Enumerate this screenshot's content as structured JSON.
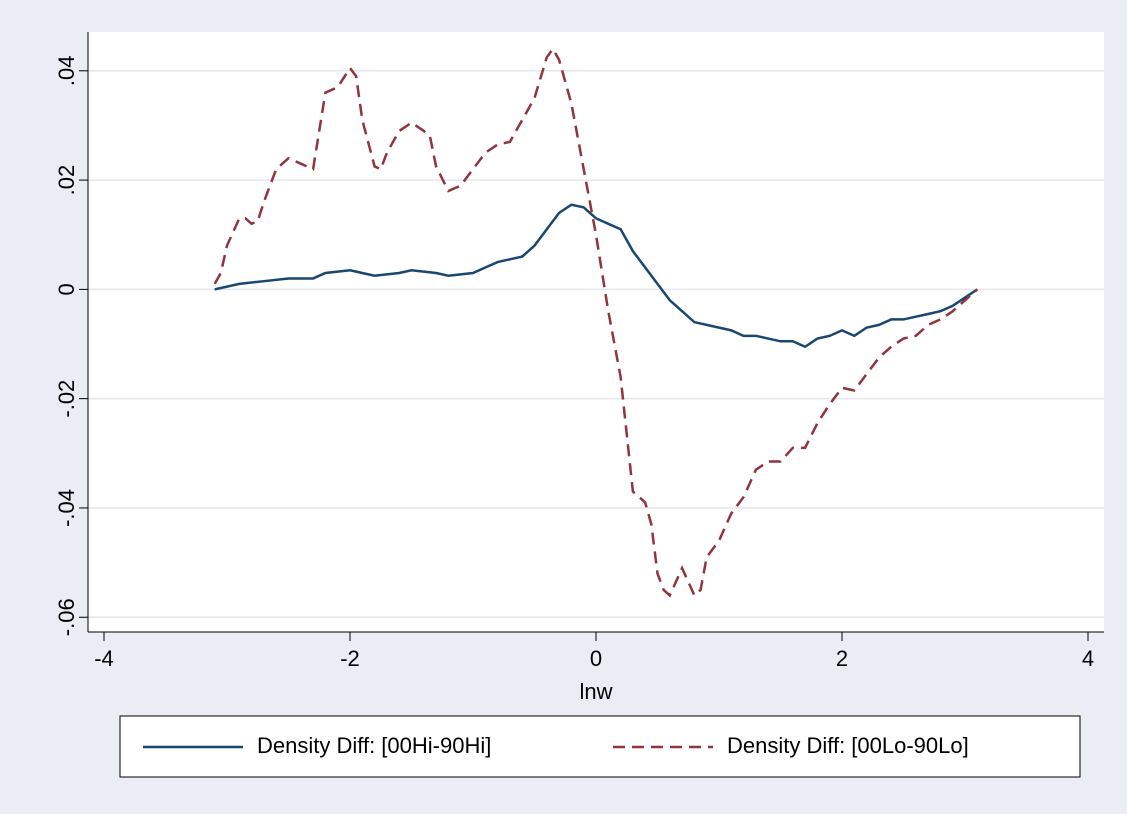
{
  "chart_data": {
    "type": "line",
    "x_label": "lnw",
    "xlim": [
      -4.13,
      4.13
    ],
    "xticks": [
      -4,
      -2,
      0,
      2,
      4
    ],
    "ylim": [
      -0.0627,
      0.0471
    ],
    "yticks": [
      {
        "value": -0.06,
        "label": "-.06"
      },
      {
        "value": -0.04,
        "label": "-.04"
      },
      {
        "value": -0.02,
        "label": "-.02"
      },
      0,
      {
        "value": 0.02,
        "label": ".02"
      },
      {
        "value": 0.04,
        "label": ".04"
      }
    ],
    "grid": true,
    "legend": "bottom",
    "series": [
      {
        "name": "Density Diff: [00Hi-90Hi]",
        "color": "#1a476f",
        "dash": false,
        "x": [
          -3.1,
          -2.9,
          -2.7,
          -2.5,
          -2.3,
          -2.2,
          -2.0,
          -1.9,
          -1.8,
          -1.6,
          -1.5,
          -1.3,
          -1.2,
          -1.0,
          -0.9,
          -0.8,
          -0.6,
          -0.5,
          -0.4,
          -0.3,
          -0.2,
          -0.1,
          0.0,
          0.1,
          0.2,
          0.3,
          0.4,
          0.5,
          0.6,
          0.7,
          0.8,
          0.9,
          1.0,
          1.1,
          1.2,
          1.3,
          1.4,
          1.5,
          1.6,
          1.7,
          1.8,
          1.9,
          2.0,
          2.1,
          2.2,
          2.3,
          2.4,
          2.5,
          2.6,
          2.7,
          2.8,
          2.9,
          3.0,
          3.1
        ],
        "values": [
          0,
          0.001,
          0.0015,
          0.002,
          0.002,
          0.003,
          0.0035,
          0.003,
          0.0025,
          0.003,
          0.0035,
          0.003,
          0.0025,
          0.003,
          0.004,
          0.005,
          0.006,
          0.008,
          0.011,
          0.014,
          0.0155,
          0.015,
          0.013,
          0.012,
          0.011,
          0.007,
          0.004,
          0.001,
          -0.002,
          -0.004,
          -0.006,
          -0.0065,
          -0.007,
          -0.0075,
          -0.0085,
          -0.0085,
          -0.009,
          -0.0095,
          -0.0095,
          -0.0105,
          -0.009,
          -0.0085,
          -0.0075,
          -0.0085,
          -0.007,
          -0.0065,
          -0.0055,
          -0.0055,
          -0.005,
          -0.0045,
          -0.004,
          -0.003,
          -0.0015,
          0
        ]
      },
      {
        "name": "Density Diff: [00Lo-90Lo]",
        "color": "#90353b",
        "dash": true,
        "x": [
          -3.1,
          -3.05,
          -3.0,
          -2.9,
          -2.85,
          -2.8,
          -2.75,
          -2.7,
          -2.6,
          -2.5,
          -2.4,
          -2.3,
          -2.2,
          -2.1,
          -2.0,
          -1.95,
          -1.9,
          -1.8,
          -1.75,
          -1.7,
          -1.6,
          -1.5,
          -1.4,
          -1.35,
          -1.3,
          -1.2,
          -1.1,
          -1.0,
          -0.9,
          -0.8,
          -0.7,
          -0.6,
          -0.5,
          -0.4,
          -0.35,
          -0.3,
          -0.2,
          -0.1,
          0.0,
          0.1,
          0.2,
          0.3,
          0.35,
          0.4,
          0.45,
          0.5,
          0.55,
          0.6,
          0.7,
          0.8,
          0.85,
          0.9,
          1.0,
          1.1,
          1.2,
          1.3,
          1.4,
          1.5,
          1.6,
          1.7,
          1.8,
          1.9,
          2.0,
          2.1,
          2.2,
          2.3,
          2.4,
          2.5,
          2.6,
          2.7,
          2.8,
          2.9,
          3.0,
          3.1
        ],
        "values": [
          0.001,
          0.003,
          0.008,
          0.013,
          0.013,
          0.012,
          0.0125,
          0.016,
          0.022,
          0.024,
          0.023,
          0.022,
          0.036,
          0.037,
          0.0405,
          0.039,
          0.031,
          0.0225,
          0.022,
          0.025,
          0.029,
          0.0305,
          0.029,
          0.028,
          0.0225,
          0.018,
          0.019,
          0.022,
          0.025,
          0.0265,
          0.027,
          0.031,
          0.035,
          0.0425,
          0.044,
          0.042,
          0.034,
          0.022,
          0.01,
          -0.004,
          -0.016,
          -0.037,
          -0.038,
          -0.039,
          -0.043,
          -0.052,
          -0.055,
          -0.056,
          -0.051,
          -0.056,
          -0.055,
          -0.049,
          -0.046,
          -0.041,
          -0.038,
          -0.033,
          -0.0315,
          -0.0315,
          -0.029,
          -0.029,
          -0.0245,
          -0.021,
          -0.018,
          -0.0185,
          -0.0155,
          -0.0125,
          -0.0105,
          -0.009,
          -0.0085,
          -0.0065,
          -0.0055,
          -0.004,
          -0.002,
          0
        ]
      }
    ]
  }
}
